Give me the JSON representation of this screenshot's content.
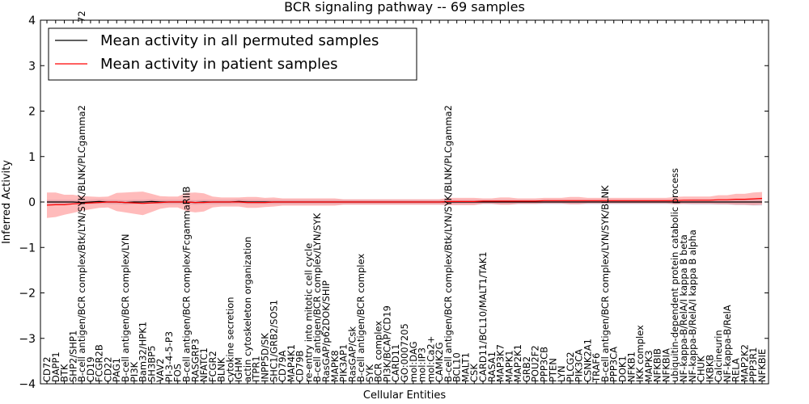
{
  "chart_data": {
    "type": "line",
    "title": "BCR signaling pathway -- 69 samples",
    "xlabel": "Cellular Entities",
    "ylabel": "Inferred Activity",
    "ylim": [
      -4,
      4
    ],
    "yticks": [
      -4,
      -3,
      -2,
      -1,
      0,
      1,
      2,
      3,
      4
    ],
    "ytick_labels": [
      "−4",
      "−3",
      "−2",
      "−1",
      "0",
      "1",
      "2",
      "3",
      "4"
    ],
    "grid": false,
    "legend_position": "top-left",
    "categories": [
      "CD72",
      "DAPP1",
      "BTK",
      "SHP2/SHP1",
      "B-cell antigen/BCR complex/Btk/LYN/SYK/BLNK/PLCgamma2",
      "CD19",
      "FCGR2B",
      "CD22",
      "PAG1",
      "B-cell antigen/BCR complex/LYN",
      "PI3K",
      "Bam32/HPK1",
      "SH3BP5",
      "VAV2",
      "PI-3-4-5-P3",
      "FOS",
      "B-cell antigen/BCR complex/FcgammaRIIB",
      "RASGRP3",
      "NFATC1",
      "FCGR2",
      "BLNK",
      "cytokine secretion",
      "IGHM",
      "actin cytoskeleton organization",
      "ITPR1",
      "INPP5D/SK",
      "SHC1/GRB2/SOS1",
      "CD79A",
      "MAP4K1",
      "CD79B",
      "re-entry into mitotic cell cycle",
      "B-cell antigen/BCR complex/LYN/SYK",
      "RasGAP/p62DOK/SHIP",
      "MAPK8",
      "PIK3AP1",
      "RasGAP/Csk",
      "B-cell antigen/BCR complex",
      "SYK",
      "BCR complex",
      "PI3K/BCAP/CD19",
      "CARD11",
      "GO:0007205",
      "mol:DAG",
      "mol:IP3",
      "mol:Ca2+",
      "CAMK2G",
      "B-cell antigen/BCR complex/Btk/LYN/SYK/BLNK/PLCgamma2",
      "BCL10",
      "MALT1",
      "CSK",
      "CARD11/BCL10/MALT1/TAK1",
      "RASA1",
      "MAP3K7",
      "MAPK1",
      "MAP2K1",
      "GRB2",
      "POU2F2",
      "PPP3CB",
      "PTEN",
      "LYN",
      "PLCG2",
      "PIK3CA",
      "CSNK2A1",
      "TRAF6",
      "B-cell antigen/BCR complex/LYN/SYK/BLNK",
      "PPP3CA",
      "DOK1",
      "NFKB1",
      "IKK complex",
      "MAPK3",
      "NFKBIB",
      "NFKBIA",
      "ubiquitin-dependent protein catabolic process",
      "NF-kappa-B/RelA/I kappa B beta",
      "NF-kappa-B/RelA/I kappa B alpha",
      "CHUK",
      "IKBKB",
      "Calcineurin",
      "NF-kappa-B/RelA",
      "RELA",
      "MAP2K2",
      "PPP3R1",
      "NFKBIE"
    ],
    "series": [
      {
        "name": "Mean activity in all permuted samples",
        "color": "#000000",
        "values": [
          0.0,
          0.0,
          0.0,
          0.0,
          -0.01,
          0.0,
          0.01,
          0.0,
          0.0,
          -0.01,
          0.0,
          0.0,
          0.01,
          0.0,
          0.0,
          0.0,
          0.0,
          -0.01,
          0.0,
          0.0,
          0.0,
          0.0,
          0.01,
          0.0,
          0.0,
          0.0,
          0.0,
          0.0,
          0.0,
          0.0,
          0.0,
          0.0,
          0.0,
          0.0,
          0.0,
          0.0,
          0.0,
          0.0,
          0.0,
          0.0,
          0.0,
          0.0,
          0.0,
          0.0,
          0.0,
          0.0,
          0.0,
          0.0,
          0.0,
          0.0,
          0.0,
          0.0,
          0.0,
          0.0,
          0.0,
          0.0,
          0.0,
          0.0,
          0.0,
          0.0,
          0.0,
          0.0,
          0.0,
          0.0,
          0.0,
          0.0,
          0.0,
          0.0,
          0.0,
          0.0,
          0.0,
          0.0,
          0.0,
          0.0,
          0.0,
          0.0,
          0.0,
          0.0,
          0.0,
          0.0,
          0.0,
          0.0,
          0.0
        ],
        "band_half_width": [
          0.05,
          0.05,
          0.05,
          0.05,
          0.05,
          0.05,
          0.05,
          0.05,
          0.05,
          0.05,
          0.05,
          0.05,
          0.05,
          0.05,
          0.05,
          0.05,
          0.05,
          0.05,
          0.05,
          0.05,
          0.05,
          0.05,
          0.05,
          0.05,
          0.05,
          0.05,
          0.05,
          0.05,
          0.05,
          0.05,
          0.05,
          0.05,
          0.05,
          0.05,
          0.05,
          0.05,
          0.05,
          0.05,
          0.05,
          0.05,
          0.05,
          0.05,
          0.05,
          0.05,
          0.05,
          0.05,
          0.05,
          0.05,
          0.05,
          0.05,
          0.05,
          0.05,
          0.05,
          0.05,
          0.05,
          0.05,
          0.05,
          0.05,
          0.05,
          0.05,
          0.05,
          0.05,
          0.05,
          0.05,
          0.05,
          0.05,
          0.05,
          0.05,
          0.05,
          0.05,
          0.05,
          0.05,
          0.05,
          0.05,
          0.06,
          0.06,
          0.06,
          0.06,
          0.06,
          0.07,
          0.07,
          0.08,
          0.08
        ]
      },
      {
        "name": "Mean activity in patient samples",
        "color": "#ff0000",
        "values": [
          -0.07,
          -0.06,
          -0.06,
          -0.04,
          -0.03,
          -0.02,
          -0.01,
          0.0,
          0.0,
          -0.01,
          -0.02,
          -0.03,
          -0.02,
          -0.01,
          0.0,
          0.0,
          0.0,
          -0.01,
          -0.01,
          0.0,
          0.0,
          0.0,
          0.0,
          -0.01,
          -0.01,
          -0.01,
          0.0,
          0.0,
          0.0,
          0.0,
          0.0,
          0.0,
          0.0,
          0.0,
          0.0,
          0.0,
          0.0,
          0.0,
          0.0,
          0.0,
          0.0,
          0.0,
          0.0,
          0.0,
          0.0,
          0.0,
          0.01,
          0.01,
          0.01,
          0.01,
          0.02,
          0.02,
          0.02,
          0.02,
          0.02,
          0.02,
          0.02,
          0.03,
          0.03,
          0.03,
          0.03,
          0.03,
          0.03,
          0.03,
          0.03,
          0.03,
          0.03,
          0.03,
          0.03,
          0.03,
          0.03,
          0.03,
          0.03,
          0.04,
          0.04,
          0.04,
          0.04,
          0.05,
          0.05,
          0.06,
          0.06,
          0.07,
          0.08
        ],
        "band_half_width": [
          0.28,
          0.27,
          0.22,
          0.2,
          0.16,
          0.14,
          0.12,
          0.12,
          0.2,
          0.22,
          0.24,
          0.26,
          0.2,
          0.14,
          0.12,
          0.12,
          0.2,
          0.22,
          0.2,
          0.12,
          0.1,
          0.1,
          0.1,
          0.12,
          0.12,
          0.1,
          0.1,
          0.08,
          0.08,
          0.08,
          0.08,
          0.08,
          0.08,
          0.08,
          0.06,
          0.06,
          0.06,
          0.06,
          0.06,
          0.06,
          0.06,
          0.06,
          0.06,
          0.06,
          0.06,
          0.06,
          0.08,
          0.08,
          0.08,
          0.08,
          0.06,
          0.06,
          0.08,
          0.08,
          0.06,
          0.06,
          0.06,
          0.06,
          0.06,
          0.06,
          0.08,
          0.08,
          0.06,
          0.06,
          0.06,
          0.06,
          0.06,
          0.06,
          0.06,
          0.06,
          0.06,
          0.06,
          0.08,
          0.08,
          0.08,
          0.08,
          0.08,
          0.1,
          0.1,
          0.12,
          0.12,
          0.14,
          0.14
        ]
      }
    ],
    "extra_labels": [
      {
        "text": "72",
        "top": true
      }
    ]
  }
}
